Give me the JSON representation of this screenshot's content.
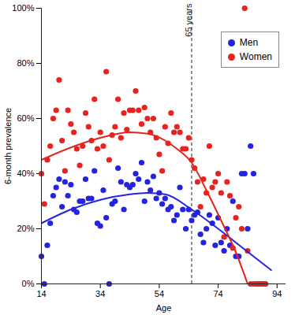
{
  "chart_data": {
    "type": "scatter",
    "x_label": "Age",
    "y_label": "6-month prevalence",
    "xlim": [
      14,
      97
    ],
    "xticks": [
      14,
      34,
      54,
      74,
      94
    ],
    "ylim": [
      0,
      100
    ],
    "yticks": [
      {
        "value": 0,
        "label": "0%"
      },
      {
        "value": 20,
        "label": "20%"
      },
      {
        "value": 40,
        "label": "40%"
      },
      {
        "value": 60,
        "label": "60%"
      },
      {
        "value": 80,
        "label": "80%"
      },
      {
        "value": 100,
        "label": "100%"
      }
    ],
    "legend": "top-right",
    "annotations": [
      {
        "x": 65,
        "text": "65 years",
        "line_style": "dashed"
      }
    ],
    "series": [
      {
        "name": "Men",
        "color": "#2424e0",
        "marker": "circle",
        "x": [
          14,
          15,
          16,
          17,
          18,
          19,
          20,
          21,
          22,
          23,
          24,
          25,
          26,
          27,
          28,
          29,
          30,
          31,
          32,
          33,
          34,
          35,
          36,
          37,
          38,
          39,
          40,
          41,
          42,
          43,
          44,
          45,
          46,
          47,
          48,
          49,
          50,
          51,
          52,
          53,
          54,
          55,
          56,
          57,
          58,
          59,
          60,
          61,
          62,
          63,
          64,
          65,
          66,
          67,
          68,
          69,
          70,
          71,
          72,
          73,
          74,
          75,
          76,
          77,
          78,
          79,
          80,
          81,
          82,
          83,
          84,
          85,
          86,
          87,
          88,
          89,
          90
        ],
        "values": [
          10,
          0,
          14,
          22,
          32,
          35,
          38,
          28,
          37,
          32,
          36,
          27,
          26,
          30,
          30,
          38,
          31,
          31,
          41,
          22,
          21,
          34,
          24,
          0,
          29,
          30,
          42,
          37,
          27,
          36,
          35,
          36,
          40,
          38,
          44,
          30,
          37,
          34,
          39,
          31,
          33,
          29,
          31,
          27,
          28,
          23,
          25,
          35,
          27,
          20,
          27,
          23,
          25,
          26,
          18,
          15,
          20,
          25,
          22,
          14,
          24,
          15,
          12,
          20,
          14,
          30,
          10,
          10,
          40,
          40,
          20,
          50,
          40,
          0,
          0,
          0,
          0
        ],
        "trend": {
          "x": [
            14,
            24,
            34,
            44,
            50,
            56,
            65,
            74,
            83,
            92
          ],
          "values": [
            22,
            27,
            30.5,
            32.5,
            33,
            32.5,
            27,
            20,
            12.5,
            5
          ]
        }
      },
      {
        "name": "Women",
        "color": "#e8231f",
        "marker": "circle",
        "x": [
          14,
          15,
          16,
          17,
          18,
          19,
          20,
          21,
          22,
          23,
          24,
          25,
          26,
          27,
          28,
          29,
          30,
          31,
          32,
          33,
          34,
          35,
          36,
          37,
          38,
          39,
          40,
          41,
          42,
          43,
          44,
          45,
          46,
          47,
          48,
          49,
          50,
          51,
          52,
          53,
          54,
          55,
          56,
          57,
          58,
          59,
          60,
          61,
          62,
          63,
          64,
          65,
          66,
          67,
          68,
          69,
          70,
          71,
          72,
          73,
          74,
          75,
          76,
          77,
          78,
          79,
          80,
          81,
          82,
          83,
          84,
          85,
          86,
          87,
          88,
          89,
          90
        ],
        "values": [
          40,
          29,
          45,
          50,
          60,
          63,
          74,
          52,
          41,
          63,
          58,
          55,
          49,
          43,
          50,
          62,
          57,
          52,
          67,
          49,
          55,
          50,
          77,
          45,
          54,
          57,
          67,
          53,
          62,
          56,
          63,
          63,
          70,
          63,
          58,
          64,
          60,
          55,
          60,
          53,
          47,
          41,
          57,
          51,
          62,
          55,
          57,
          55,
          49,
          49,
          53,
          45,
          42,
          37,
          28,
          38,
          33,
          50,
          35,
          37,
          40,
          33,
          17,
          37,
          32,
          13,
          24,
          28,
          20,
          100,
          12,
          0,
          0,
          0,
          0,
          0,
          0
        ],
        "trend": {
          "x": [
            14,
            24,
            34,
            44,
            50,
            56,
            60,
            65,
            70,
            75,
            80,
            84
          ],
          "values": [
            45,
            49.5,
            53,
            55,
            54.5,
            52,
            49,
            44,
            34,
            23,
            11.5,
            0
          ]
        }
      }
    ]
  }
}
